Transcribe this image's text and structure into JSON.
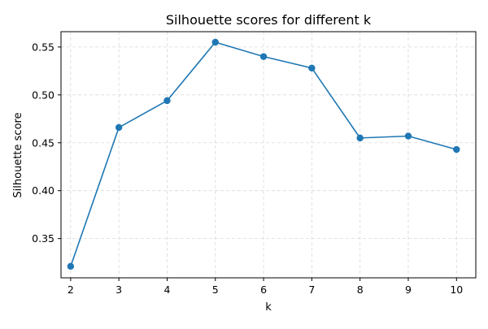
{
  "chart_data": {
    "type": "line",
    "title": "Silhouette scores for different k",
    "xlabel": "k",
    "ylabel": "Silhouette score",
    "x": [
      2,
      3,
      4,
      5,
      6,
      7,
      8,
      9,
      10
    ],
    "xticks": [
      "2",
      "3",
      "4",
      "5",
      "6",
      "7",
      "8",
      "9",
      "10"
    ],
    "yticks": [
      "0.35",
      "0.40",
      "0.45",
      "0.50",
      "0.55"
    ],
    "yticks_values": [
      0.35,
      0.4,
      0.45,
      0.5,
      0.55
    ],
    "xlim": [
      1.8,
      10.4
    ],
    "ylim": [
      0.309,
      0.566
    ],
    "grid": true,
    "grid_style": "dashed",
    "series": [
      {
        "values": [
          0.321,
          0.466,
          0.494,
          0.555,
          0.54,
          0.528,
          0.455,
          0.457,
          0.443
        ],
        "color": "#1f77b4",
        "marker": "circle"
      }
    ]
  }
}
